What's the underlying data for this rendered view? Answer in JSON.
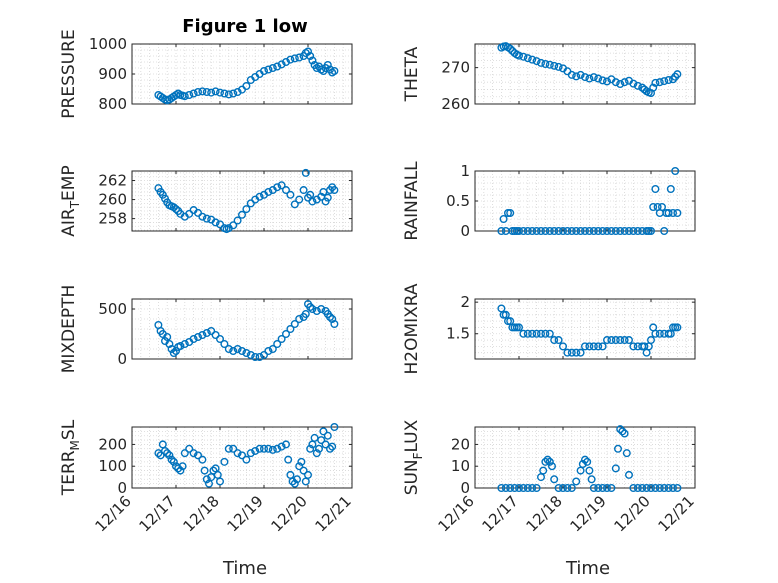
{
  "chart_data": [
    {
      "type": "scatter",
      "panel": "pressure",
      "title": "Figure 1 low",
      "ylabel": "PRESSURE",
      "ylabel_sub": "",
      "ylabel_suffix": "",
      "ylim": [
        800,
        1000
      ],
      "yticks": [
        "800",
        "900",
        "1000"
      ],
      "ytick_values": [
        800,
        900,
        1000
      ],
      "xlim": [
        0,
        5
      ],
      "grid": true,
      "x": [
        0.6,
        0.65,
        0.7,
        0.75,
        0.8,
        0.85,
        0.9,
        0.95,
        1.0,
        1.05,
        1.1,
        1.15,
        1.2,
        1.3,
        1.4,
        1.5,
        1.6,
        1.7,
        1.8,
        1.9,
        2.0,
        2.1,
        2.2,
        2.3,
        2.4,
        2.5,
        2.6,
        2.7,
        2.8,
        2.9,
        3.0,
        3.1,
        3.2,
        3.3,
        3.4,
        3.5,
        3.6,
        3.7,
        3.8,
        3.9,
        3.95,
        4.0,
        4.05,
        4.1,
        4.15,
        4.2,
        4.25,
        4.3,
        4.35,
        4.4,
        4.45,
        4.5,
        4.55,
        4.6
      ],
      "y": [
        830,
        825,
        820,
        815,
        812,
        815,
        820,
        825,
        830,
        835,
        830,
        828,
        826,
        830,
        835,
        840,
        842,
        840,
        838,
        842,
        838,
        835,
        832,
        835,
        840,
        848,
        860,
        880,
        890,
        900,
        910,
        915,
        920,
        925,
        932,
        940,
        948,
        952,
        955,
        960,
        970,
        975,
        960,
        945,
        930,
        920,
        925,
        915,
        910,
        920,
        930,
        915,
        905,
        910
      ]
    },
    {
      "type": "scatter",
      "panel": "theta",
      "title": "",
      "ylabel": "THETA",
      "ylabel_sub": "",
      "ylabel_suffix": "",
      "ylim": [
        260,
        276.5
      ],
      "yticks": [
        "260",
        "270"
      ],
      "ytick_values": [
        260,
        270
      ],
      "xlim": [
        0,
        5
      ],
      "grid": true,
      "x": [
        0.6,
        0.65,
        0.7,
        0.75,
        0.8,
        0.85,
        0.9,
        0.95,
        1.0,
        1.1,
        1.2,
        1.3,
        1.4,
        1.5,
        1.6,
        1.7,
        1.8,
        1.9,
        2.0,
        2.1,
        2.2,
        2.3,
        2.4,
        2.5,
        2.6,
        2.7,
        2.8,
        2.9,
        3.0,
        3.1,
        3.2,
        3.3,
        3.4,
        3.5,
        3.6,
        3.7,
        3.8,
        3.85,
        3.9,
        3.95,
        4.0,
        4.05,
        4.1,
        4.2,
        4.3,
        4.4,
        4.5,
        4.55,
        4.6
      ],
      "y": [
        275.5,
        275.8,
        275.9,
        275.6,
        275.2,
        274.6,
        274.0,
        273.6,
        273.3,
        273.0,
        272.6,
        272.2,
        271.8,
        271.3,
        271.0,
        270.8,
        270.5,
        270.2,
        269.8,
        269.0,
        268.0,
        267.6,
        268.0,
        267.4,
        267.0,
        267.4,
        267.0,
        266.5,
        266.2,
        266.8,
        266.0,
        265.5,
        266.0,
        266.4,
        265.6,
        265.0,
        264.5,
        264.0,
        263.5,
        263.2,
        263.0,
        264.5,
        265.8,
        266.0,
        266.3,
        266.6,
        266.8,
        267.5,
        268.2
      ]
    },
    {
      "type": "scatter",
      "panel": "air_temp",
      "title": "",
      "ylabel": "AIR",
      "ylabel_sub": "T",
      "ylabel_suffix": "EMP",
      "ylim": [
        256.7,
        263
      ],
      "yticks": [
        "258",
        "260",
        "262"
      ],
      "ytick_values": [
        258,
        260,
        262
      ],
      "xlim": [
        0,
        5
      ],
      "grid": true,
      "x": [
        0.6,
        0.65,
        0.7,
        0.75,
        0.8,
        0.85,
        0.9,
        0.95,
        1.0,
        1.05,
        1.1,
        1.2,
        1.3,
        1.4,
        1.5,
        1.6,
        1.7,
        1.8,
        1.9,
        2.0,
        2.1,
        2.15,
        2.2,
        2.3,
        2.4,
        2.5,
        2.6,
        2.7,
        2.8,
        2.9,
        3.0,
        3.1,
        3.2,
        3.3,
        3.4,
        3.5,
        3.6,
        3.7,
        3.8,
        3.9,
        3.95,
        4.0,
        4.05,
        4.1,
        4.2,
        4.3,
        4.35,
        4.4,
        4.45,
        4.5,
        4.55,
        4.6
      ],
      "y": [
        261.2,
        260.8,
        260.5,
        260.1,
        259.7,
        259.4,
        259.3,
        259.2,
        259.0,
        258.8,
        258.5,
        258.2,
        258.5,
        258.9,
        258.6,
        258.2,
        258.0,
        257.9,
        257.6,
        257.4,
        257.0,
        256.9,
        257.0,
        257.3,
        257.8,
        258.4,
        259.0,
        259.6,
        260.0,
        260.3,
        260.5,
        260.8,
        261.0,
        261.3,
        261.5,
        261.0,
        260.5,
        259.5,
        260.0,
        261.0,
        262.8,
        260.2,
        260.5,
        259.8,
        260.0,
        260.3,
        260.8,
        259.8,
        260.2,
        261.0,
        261.3,
        261.0
      ]
    },
    {
      "type": "scatter",
      "panel": "rainfall",
      "title": "",
      "ylabel": "RAINFALL",
      "ylabel_sub": "",
      "ylabel_suffix": "",
      "ylim": [
        0,
        1
      ],
      "yticks": [
        "0",
        "0.5",
        "1"
      ],
      "ytick_values": [
        0,
        0.5,
        1
      ],
      "xlim": [
        0,
        5
      ],
      "grid": true,
      "x": [
        0.6,
        0.65,
        0.7,
        0.75,
        0.8,
        0.85,
        0.9,
        0.95,
        1.0,
        1.1,
        1.2,
        1.3,
        1.4,
        1.5,
        1.6,
        1.7,
        1.8,
        1.9,
        2.0,
        2.1,
        2.2,
        2.3,
        2.4,
        2.5,
        2.6,
        2.7,
        2.8,
        2.9,
        3.0,
        3.1,
        3.2,
        3.3,
        3.4,
        3.5,
        3.6,
        3.7,
        3.8,
        3.9,
        3.95,
        4.0,
        4.05,
        4.1,
        4.15,
        4.2,
        4.25,
        4.3,
        4.35,
        4.4,
        4.45,
        4.5,
        4.55,
        4.6
      ],
      "y": [
        0,
        0.2,
        0,
        0.3,
        0.3,
        0,
        0,
        0,
        0,
        0,
        0,
        0,
        0,
        0,
        0,
        0,
        0,
        0,
        0,
        0,
        0,
        0,
        0,
        0,
        0,
        0,
        0,
        0,
        0,
        0,
        0,
        0,
        0,
        0,
        0,
        0,
        0,
        0,
        0,
        0,
        0.4,
        0.7,
        0.4,
        0.3,
        0.4,
        0,
        0.3,
        0.3,
        0.7,
        0.3,
        1.0,
        0.3
      ]
    },
    {
      "type": "scatter",
      "panel": "mixdepth",
      "title": "",
      "ylabel": "MIXDEPTH",
      "ylabel_sub": "",
      "ylabel_suffix": "",
      "ylim": [
        0,
        600
      ],
      "yticks": [
        "0",
        "500"
      ],
      "ytick_values": [
        0,
        500
      ],
      "xlim": [
        0,
        5
      ],
      "grid": true,
      "x": [
        0.6,
        0.65,
        0.7,
        0.75,
        0.8,
        0.85,
        0.9,
        0.95,
        1.0,
        1.05,
        1.1,
        1.2,
        1.3,
        1.4,
        1.5,
        1.6,
        1.7,
        1.8,
        1.9,
        2.0,
        2.1,
        2.2,
        2.3,
        2.4,
        2.5,
        2.6,
        2.7,
        2.8,
        2.9,
        3.0,
        3.1,
        3.2,
        3.3,
        3.4,
        3.5,
        3.6,
        3.7,
        3.8,
        3.9,
        3.95,
        4.0,
        4.05,
        4.1,
        4.2,
        4.3,
        4.4,
        4.45,
        4.5,
        4.55,
        4.6
      ],
      "y": [
        340,
        280,
        250,
        180,
        220,
        150,
        100,
        60,
        80,
        120,
        130,
        150,
        170,
        200,
        220,
        240,
        260,
        280,
        240,
        200,
        150,
        100,
        80,
        100,
        80,
        60,
        40,
        20,
        20,
        40,
        80,
        100,
        150,
        200,
        250,
        300,
        350,
        400,
        420,
        450,
        550,
        520,
        500,
        480,
        500,
        480,
        450,
        420,
        400,
        350
      ]
    },
    {
      "type": "scatter",
      "panel": "h2omixra",
      "title": "",
      "ylabel": "H2OMIXRA",
      "ylabel_sub": "",
      "ylabel_suffix": "",
      "ylim": [
        1.1,
        2.05
      ],
      "yticks": [
        "1.5",
        "2"
      ],
      "ytick_values": [
        1.5,
        2
      ],
      "xlim": [
        0,
        5
      ],
      "grid": true,
      "x": [
        0.6,
        0.65,
        0.7,
        0.75,
        0.8,
        0.85,
        0.9,
        0.95,
        1.0,
        1.1,
        1.2,
        1.3,
        1.4,
        1.5,
        1.6,
        1.7,
        1.8,
        1.9,
        2.0,
        2.1,
        2.2,
        2.3,
        2.4,
        2.5,
        2.6,
        2.7,
        2.8,
        2.9,
        3.0,
        3.1,
        3.2,
        3.3,
        3.4,
        3.5,
        3.6,
        3.7,
        3.8,
        3.85,
        3.9,
        3.95,
        4.0,
        4.05,
        4.1,
        4.2,
        4.3,
        4.4,
        4.45,
        4.5,
        4.55,
        4.6
      ],
      "y": [
        1.9,
        1.8,
        1.8,
        1.7,
        1.7,
        1.6,
        1.6,
        1.6,
        1.6,
        1.5,
        1.5,
        1.5,
        1.5,
        1.5,
        1.5,
        1.5,
        1.4,
        1.4,
        1.3,
        1.2,
        1.2,
        1.2,
        1.2,
        1.3,
        1.3,
        1.3,
        1.3,
        1.3,
        1.4,
        1.4,
        1.4,
        1.4,
        1.4,
        1.4,
        1.3,
        1.3,
        1.3,
        1.3,
        1.2,
        1.3,
        1.4,
        1.6,
        1.5,
        1.5,
        1.5,
        1.5,
        1.5,
        1.6,
        1.6,
        1.6
      ]
    },
    {
      "type": "scatter",
      "panel": "terr_msl",
      "title": "",
      "ylabel": "TERR",
      "ylabel_sub": "M",
      "ylabel_suffix": "SL",
      "ylim": [
        0,
        280
      ],
      "yticks": [
        "0",
        "100",
        "200"
      ],
      "ytick_values": [
        0,
        100,
        200
      ],
      "xlim": [
        0,
        5
      ],
      "grid": true,
      "x": [
        0.6,
        0.65,
        0.7,
        0.75,
        0.8,
        0.85,
        0.9,
        0.95,
        1.0,
        1.05,
        1.1,
        1.15,
        1.2,
        1.3,
        1.4,
        1.5,
        1.6,
        1.65,
        1.7,
        1.75,
        1.8,
        1.85,
        1.9,
        1.95,
        2.0,
        2.1,
        2.2,
        2.3,
        2.4,
        2.5,
        2.6,
        2.7,
        2.8,
        2.9,
        3.0,
        3.1,
        3.2,
        3.3,
        3.4,
        3.5,
        3.55,
        3.6,
        3.65,
        3.7,
        3.75,
        3.8,
        3.85,
        3.9,
        3.95,
        4.0,
        4.05,
        4.1,
        4.15,
        4.2,
        4.25,
        4.3,
        4.35,
        4.4,
        4.45,
        4.5,
        4.55,
        4.6
      ],
      "y": [
        160,
        150,
        200,
        170,
        160,
        150,
        130,
        120,
        100,
        90,
        80,
        100,
        160,
        180,
        160,
        150,
        130,
        80,
        40,
        20,
        50,
        80,
        90,
        60,
        30,
        120,
        180,
        180,
        160,
        150,
        130,
        160,
        170,
        180,
        180,
        180,
        175,
        180,
        190,
        200,
        130,
        60,
        30,
        20,
        40,
        100,
        120,
        80,
        30,
        60,
        180,
        200,
        230,
        160,
        180,
        220,
        260,
        200,
        240,
        180,
        190,
        280
      ]
    },
    {
      "type": "scatter",
      "panel": "sun_flux",
      "title": "",
      "ylabel": "SUN",
      "ylabel_sub": "F",
      "ylabel_suffix": "LUX",
      "ylim": [
        0,
        28
      ],
      "yticks": [
        "0",
        "10",
        "20"
      ],
      "ytick_values": [
        0,
        10,
        20
      ],
      "xlim": [
        0,
        5
      ],
      "grid": true,
      "x": [
        0.6,
        0.7,
        0.8,
        0.9,
        1.0,
        1.1,
        1.2,
        1.3,
        1.4,
        1.5,
        1.55,
        1.6,
        1.65,
        1.7,
        1.75,
        1.8,
        1.9,
        2.0,
        2.1,
        2.2,
        2.3,
        2.4,
        2.45,
        2.5,
        2.55,
        2.6,
        2.65,
        2.7,
        2.8,
        2.9,
        3.0,
        3.1,
        3.2,
        3.25,
        3.3,
        3.35,
        3.4,
        3.45,
        3.5,
        3.6,
        3.7,
        3.8,
        3.9,
        4.0,
        4.1,
        4.2,
        4.3,
        4.4,
        4.5,
        4.6
      ],
      "y": [
        0,
        0,
        0,
        0,
        0,
        0,
        0,
        0,
        0,
        5,
        8,
        12,
        13,
        12,
        10,
        4,
        0,
        0,
        0,
        0,
        3,
        8,
        11,
        13,
        12,
        8,
        4,
        0,
        0,
        0,
        0,
        0,
        9,
        18,
        27,
        26,
        25,
        16,
        6,
        0,
        0,
        0,
        0,
        0,
        0,
        0,
        0,
        0,
        0,
        0
      ]
    }
  ],
  "x_axis": {
    "label": "Time",
    "ticks": [
      "12/16",
      "12/17",
      "12/18",
      "12/19",
      "12/20",
      "12/21"
    ],
    "tick_values": [
      0,
      1,
      2,
      3,
      4,
      5
    ]
  },
  "colors": {
    "marker": "#0072BD",
    "axis": "#262626",
    "grid": "#d6d6d6"
  }
}
